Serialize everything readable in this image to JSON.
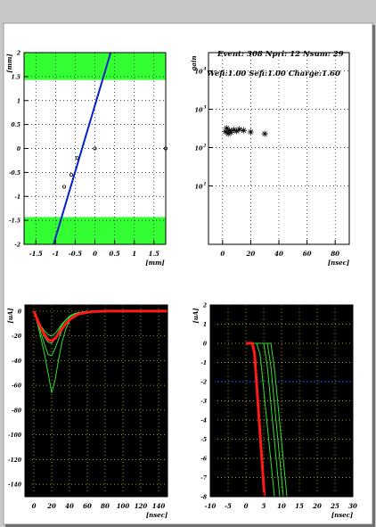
{
  "colors": {
    "band": "#33ff33",
    "track": "#0022cc",
    "marker": "#000000",
    "pulse_fit": "#ff1a1a",
    "pulse": "#33dd33",
    "threshold": "#2255ff",
    "grid_dark": "#d8d800",
    "panel_dark": "#000000"
  },
  "chart_data": [
    {
      "type": "scatter",
      "xlabel": "[mm]",
      "ylabel": "[mm]",
      "xlim": [
        -1.8,
        1.8
      ],
      "ylim": [
        -2,
        2
      ],
      "xticks": [
        "-1.5",
        "-1",
        "-0.5",
        "0",
        "0.5",
        "1",
        "1.5"
      ],
      "yticks": [
        "-2",
        "-1.5",
        "-1",
        "-0.5",
        "0",
        "0.5",
        "1",
        "1.5",
        "2"
      ],
      "xtick_values": [
        -1.5,
        -1,
        -0.5,
        0,
        0.5,
        1,
        1.5
      ],
      "ytick_values": [
        -2,
        -1.5,
        -1,
        -0.5,
        0,
        0.5,
        1,
        1.5,
        2
      ],
      "bands": [
        {
          "y0": 1.43,
          "y1": 2.0
        },
        {
          "y0": -2.0,
          "y1": -1.43
        }
      ],
      "track": {
        "x": [
          -1.05,
          0.4
        ],
        "y": [
          -2.0,
          2.0
        ]
      },
      "points": {
        "x": [
          -0.78,
          -0.6,
          -0.45,
          0.0,
          1.8
        ],
        "y": [
          -0.8,
          -0.55,
          -0.2,
          0.0,
          0.0
        ]
      }
    },
    {
      "type": "scatter",
      "title": "Event: 308 Npri: 12 Nsum: 29",
      "subtitle": "Wefi:1.00 Sefi:1.00 Charge:1.60",
      "xlabel": "[nsec]",
      "ylabel": "gain",
      "xlim": [
        -10,
        90
      ],
      "xticks": [
        "0",
        "20",
        "40",
        "60",
        "80"
      ],
      "xtick_values": [
        0,
        20,
        40,
        60,
        80
      ],
      "ylog": true,
      "ylim": [
        0.3,
        30000
      ],
      "yticks": [
        "10",
        "10",
        "10",
        "10"
      ],
      "yexp": [
        "1",
        "2",
        "3",
        "4"
      ],
      "ytick_values": [
        10,
        100,
        1000,
        10000
      ],
      "points": {
        "x": [
          2,
          3,
          4,
          5,
          6,
          8,
          10,
          12,
          15,
          20,
          30
        ],
        "y": [
          260,
          320,
          230,
          280,
          250,
          290,
          270,
          300,
          280,
          255,
          230
        ]
      }
    },
    {
      "type": "line",
      "xlabel": "[nsec]",
      "ylabel": "[uA]",
      "xlim": [
        -10,
        150
      ],
      "ylim": [
        -150,
        5
      ],
      "xticks": [
        "0",
        "20",
        "40",
        "60",
        "80",
        "100",
        "120",
        "140"
      ],
      "xtick_values": [
        0,
        20,
        40,
        60,
        80,
        100,
        120,
        140
      ],
      "yticks": [
        "-140",
        "-120",
        "-100",
        "-80",
        "-60",
        "-40",
        "-20",
        "0"
      ],
      "ytick_values": [
        -140,
        -120,
        -100,
        -80,
        -60,
        -40,
        -20,
        0
      ],
      "x": [
        0,
        4,
        8,
        12,
        16,
        20,
        24,
        28,
        32,
        36,
        40,
        44,
        48,
        52,
        56,
        60,
        64,
        68,
        72,
        76,
        80,
        90,
        100,
        110,
        120,
        130,
        140,
        150
      ],
      "series": [
        {
          "role": "fit",
          "values": [
            0,
            -7,
            -14,
            -19,
            -23,
            -24,
            -22,
            -18,
            -14,
            -10,
            -7,
            -5,
            -3,
            -2,
            -1.5,
            -1,
            -0.6,
            -0.3,
            -0.2,
            -0.1,
            0,
            0,
            0,
            0,
            0,
            0,
            0,
            0
          ]
        },
        {
          "role": "pulse",
          "values": [
            0,
            -10,
            -22,
            -35,
            -50,
            -66,
            -55,
            -38,
            -24,
            -14,
            -8,
            -5,
            -3,
            -2,
            -1,
            -0.5,
            -0.2,
            0,
            0,
            0,
            0,
            0,
            0,
            0,
            0,
            0,
            0,
            0
          ]
        },
        {
          "role": "pulse",
          "values": [
            0,
            -8,
            -18,
            -27,
            -35,
            -36,
            -30,
            -22,
            -15,
            -9,
            -5,
            -3,
            -2,
            -1,
            -0.5,
            -0.2,
            0,
            0,
            0,
            0,
            0,
            0,
            0,
            0,
            0,
            0,
            0,
            0
          ]
        },
        {
          "role": "pulse",
          "values": [
            0,
            -7,
            -15,
            -21,
            -25,
            -26,
            -22,
            -16,
            -11,
            -7,
            -4,
            -2.5,
            -1.5,
            -1,
            -0.5,
            -0.2,
            0,
            0,
            0,
            0,
            0,
            0,
            0,
            0,
            0,
            0,
            0,
            0
          ]
        },
        {
          "role": "pulse",
          "values": [
            0,
            -6,
            -12,
            -16,
            -19,
            -20,
            -18,
            -14,
            -10,
            -7,
            -4,
            -2.5,
            -1.5,
            -1,
            -0.5,
            -0.2,
            0,
            0,
            0,
            0,
            0,
            0,
            0,
            0,
            0,
            0,
            0,
            0
          ]
        }
      ]
    },
    {
      "type": "line",
      "xlabel": "[nsec]",
      "ylabel": "[uA]",
      "xlim": [
        -10,
        30
      ],
      "ylim": [
        -8,
        2
      ],
      "xticks": [
        "-10",
        "-5",
        "0",
        "5",
        "10",
        "15",
        "20",
        "25",
        "30"
      ],
      "xtick_values": [
        -10,
        -5,
        0,
        5,
        10,
        15,
        20,
        25,
        30
      ],
      "yticks": [
        "-8",
        "-7",
        "-6",
        "-5",
        "-4",
        "-3",
        "-2",
        "-1",
        "0",
        "1",
        "2"
      ],
      "ytick_values": [
        -8,
        -7,
        -6,
        -5,
        -4,
        -3,
        -2,
        -1,
        0,
        1,
        2
      ],
      "threshold": -2,
      "series": [
        {
          "role": "fit",
          "x": [
            0,
            1.8,
            2.4,
            5.2
          ],
          "y": [
            0,
            0,
            -0.5,
            -8
          ]
        },
        {
          "role": "pulse",
          "x": [
            0,
            5,
            6,
            9.5
          ],
          "y": [
            0,
            0,
            -1.2,
            -8
          ]
        },
        {
          "role": "pulse",
          "x": [
            0,
            6,
            7,
            10.5
          ],
          "y": [
            0,
            0,
            -1.2,
            -8
          ]
        },
        {
          "role": "pulse",
          "x": [
            0,
            7,
            8,
            11.5
          ],
          "y": [
            0,
            0,
            -1.3,
            -8
          ]
        },
        {
          "role": "pulse",
          "x": [
            0,
            3,
            4,
            8
          ],
          "y": [
            0,
            0,
            -0.6,
            -8
          ]
        }
      ]
    }
  ]
}
